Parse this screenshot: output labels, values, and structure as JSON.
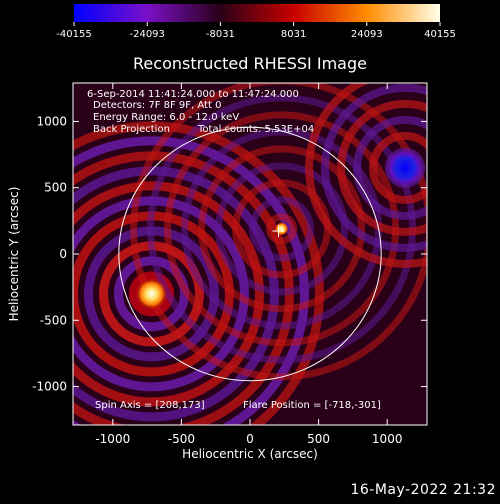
{
  "chart_data": {
    "type": "heatmap",
    "title": "Reconstructed RHESSI Image",
    "xlabel": "Heliocentric X (arcsec)",
    "ylabel": "Heliocentric Y (arcsec)",
    "xlim": [
      -1290,
      1290
    ],
    "ylim": [
      -1290,
      1290
    ],
    "x_ticks": [
      -1000,
      -500,
      0,
      500,
      1000
    ],
    "y_ticks": [
      -1000,
      -500,
      0,
      500,
      1000
    ],
    "colorbar": {
      "min": -40155,
      "max": 40155,
      "ticks": [
        -40155,
        -24093,
        -8031,
        8031,
        24093,
        40155
      ],
      "tick_labels": [
        "-40155",
        "-24093",
        "-8031",
        "8031",
        "24093",
        "40155"
      ],
      "colors": [
        "#0000ff",
        "#7a10c8",
        "#2a0018",
        "#c80000",
        "#ff8c00",
        "#ffffe8"
      ]
    },
    "annotations": [
      "6-Sep-2014 11:41:24.000 to 11:47:24.000",
      "Detectors: 7F 8F 9F, Att 0",
      "Energy Range: 6.0 - 12.0 keV",
      "Back Projection",
      "Total counts: 5.53E+04"
    ],
    "bottom_annotations": {
      "spin_axis": "Spin Axis = [208,173]",
      "flare_position": "Flare Position = [-718,-301]"
    },
    "solar_limb_radius": 956,
    "cross_marker": [
      208,
      173
    ],
    "bright_sources": [
      {
        "x": -718,
        "y": -301,
        "level": 40155
      },
      {
        "x": 230,
        "y": 190,
        "level": 24093
      }
    ],
    "negative_sources": [
      {
        "x": 1130,
        "y": 650,
        "level": -40155
      }
    ]
  },
  "footer": {
    "timestamp": "16-May-2022 21:32"
  }
}
